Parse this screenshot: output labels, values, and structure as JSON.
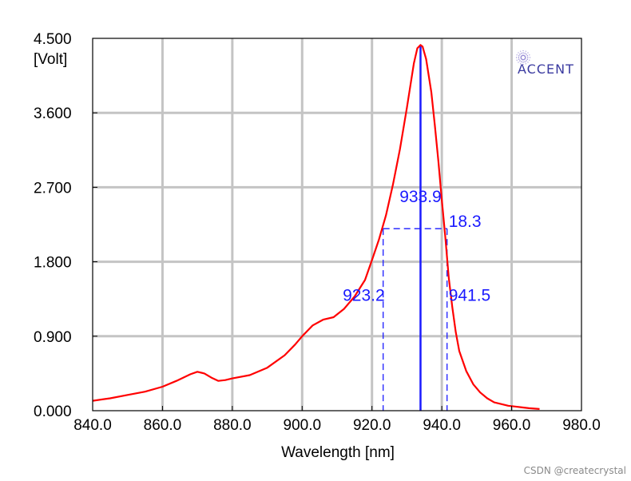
{
  "chart_data": {
    "type": "line",
    "xlabel": "Wavelength [nm]",
    "ylabel": "[Volt]",
    "xlim": [
      840,
      980
    ],
    "ylim": [
      0,
      4.5
    ],
    "x_ticks": [
      "840.0",
      "860.0",
      "880.0",
      "900.0",
      "920.0",
      "940.0",
      "960.0",
      "980.0"
    ],
    "x_tick_values": [
      840,
      860,
      880,
      900,
      920,
      940,
      960,
      980
    ],
    "y_ticks": [
      "0.000",
      "0.900",
      "1.800",
      "2.700",
      "3.600",
      "4.500"
    ],
    "y_tick_values": [
      0,
      0.9,
      1.8,
      2.7,
      3.6,
      4.5
    ],
    "grid": true,
    "line_color": "#ff0000",
    "annotation_color": "#1a1aff",
    "series": [
      {
        "x": [
          840,
          845,
          850,
          855,
          860,
          864,
          868,
          870,
          872,
          874,
          876,
          878,
          880,
          885,
          890,
          895,
          898,
          900,
          903,
          906,
          909,
          912,
          915,
          918,
          920,
          922,
          924,
          926,
          928,
          930,
          931,
          932,
          933,
          933.9,
          934.5,
          935.5,
          937,
          938,
          939,
          940,
          941,
          942,
          943,
          944,
          945,
          947,
          949,
          951,
          953,
          955,
          957,
          959,
          961,
          963,
          965,
          968
        ],
        "y": [
          0.12,
          0.15,
          0.19,
          0.23,
          0.29,
          0.36,
          0.44,
          0.47,
          0.45,
          0.4,
          0.36,
          0.37,
          0.39,
          0.43,
          0.52,
          0.67,
          0.8,
          0.9,
          1.03,
          1.1,
          1.13,
          1.23,
          1.38,
          1.58,
          1.82,
          2.07,
          2.36,
          2.73,
          3.16,
          3.66,
          3.93,
          4.2,
          4.38,
          4.42,
          4.4,
          4.25,
          3.85,
          3.45,
          3.02,
          2.55,
          2.1,
          1.6,
          1.25,
          0.95,
          0.72,
          0.48,
          0.32,
          0.22,
          0.15,
          0.1,
          0.08,
          0.06,
          0.05,
          0.04,
          0.03,
          0.02
        ]
      }
    ],
    "annotations": {
      "peak_label": "933.9",
      "fwhm_label": "18.3",
      "left_label": "923.2",
      "right_label": "941.5",
      "peak_x": 933.9,
      "peak_y": 4.42,
      "half_max_y": 2.2,
      "left_x": 923.2,
      "right_x": 941.5
    }
  },
  "logo": {
    "text": "ACCENT"
  },
  "watermark": {
    "text": "CSDN @createcrystal"
  }
}
